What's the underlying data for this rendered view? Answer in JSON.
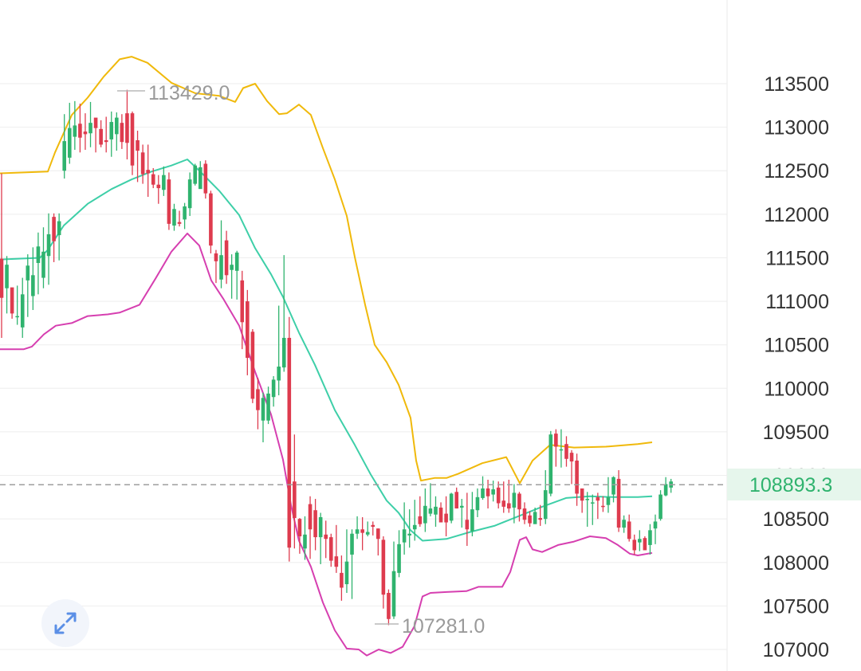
{
  "chart_data": {
    "type": "candlestick",
    "y_range": [
      106900,
      113900
    ],
    "y_ticks": [
      "113500",
      "113000",
      "112500",
      "112000",
      "111500",
      "111000",
      "110500",
      "110000",
      "109500",
      "109000",
      "108500",
      "108000",
      "107500",
      "107000"
    ],
    "current_price": 108893.3,
    "current_price_label": "108893.3",
    "high_label": "113429.0",
    "low_label": "107281.0",
    "colors": {
      "up": "#2fb36e",
      "down": "#de3b4e",
      "upper_band": "#f0b90b",
      "middle_band": "#3ecfa8",
      "lower_band": "#d63fb0",
      "grid": "#eeeeee",
      "price_line": "#9e9e9e",
      "price_tag_bg": "#e6f6ec",
      "price_tag_text": "#2fb36e"
    },
    "candles": [
      [
        111490,
        111040,
        112470,
        110580
      ],
      [
        111150,
        111420,
        111520,
        110860
      ],
      [
        111160,
        110860,
        111150,
        110800
      ],
      [
        110820,
        110830,
        111180,
        110730
      ],
      [
        110700,
        111080,
        111270,
        110580
      ],
      [
        111240,
        111410,
        111540,
        110820
      ],
      [
        111060,
        111300,
        111620,
        110900
      ],
      [
        111440,
        111630,
        111790,
        111080
      ],
      [
        111270,
        111570,
        111850,
        111150
      ],
      [
        111520,
        111770,
        112010,
        111190
      ],
      [
        111970,
        111690,
        112010,
        111450
      ],
      [
        111760,
        111920,
        112010,
        111470
      ],
      [
        112500,
        112840,
        113150,
        112410
      ],
      [
        112650,
        112990,
        113280,
        112580
      ],
      [
        112890,
        113020,
        113300,
        112740
      ],
      [
        113040,
        112880,
        113270,
        112710
      ],
      [
        112950,
        112920,
        113160,
        112740
      ],
      [
        112930,
        113050,
        113290,
        112770
      ],
      [
        113110,
        112990,
        113090,
        112710
      ],
      [
        112980,
        112800,
        113080,
        112770
      ],
      [
        112850,
        112830,
        113120,
        112710
      ],
      [
        112860,
        113060,
        113180,
        112660
      ],
      [
        112920,
        113110,
        113170,
        112730
      ],
      [
        113050,
        112830,
        113150,
        112750
      ],
      [
        113160,
        112820,
        113430,
        112630
      ],
      [
        113160,
        112560,
        113180,
        112450
      ],
      [
        112850,
        112730,
        112960,
        112370
      ],
      [
        112710,
        112460,
        112800,
        112350
      ],
      [
        112510,
        112470,
        112800,
        112200
      ],
      [
        112460,
        112340,
        112530,
        112300
      ],
      [
        112340,
        112300,
        112450,
        112120
      ],
      [
        112280,
        112450,
        112550,
        112210
      ],
      [
        112400,
        111890,
        112480,
        111820
      ],
      [
        111870,
        112060,
        112120,
        111810
      ],
      [
        111910,
        111890,
        112040,
        111860
      ],
      [
        111940,
        112090,
        112130,
        111830
      ],
      [
        112070,
        112400,
        112480,
        111980
      ],
      [
        112350,
        112560,
        112580,
        112330
      ],
      [
        112290,
        112540,
        112610,
        112320
      ],
      [
        112580,
        112240,
        112620,
        112180
      ],
      [
        112240,
        111640,
        112270,
        111550
      ],
      [
        111550,
        111460,
        111590,
        111210
      ],
      [
        111250,
        111530,
        111930,
        111150
      ],
      [
        111700,
        111300,
        111810,
        111200
      ],
      [
        111360,
        111420,
        111540,
        111030
      ],
      [
        111350,
        111560,
        111580,
        111020
      ],
      [
        111240,
        110760,
        111350,
        110450
      ],
      [
        111000,
        110350,
        111130,
        110150
      ],
      [
        110650,
        109880,
        110680,
        109830
      ],
      [
        109990,
        109750,
        110120,
        109530
      ],
      [
        109630,
        109890,
        109950,
        109380
      ],
      [
        109630,
        109940,
        110020,
        109590
      ],
      [
        109900,
        110100,
        110140,
        109790
      ],
      [
        110090,
        110250,
        110950,
        109920
      ],
      [
        110240,
        110580,
        111530,
        110190
      ],
      [
        110580,
        108170,
        110820,
        108010
      ],
      [
        108930,
        108510,
        109470,
        108160
      ],
      [
        108500,
        108300,
        108510,
        108100
      ],
      [
        108160,
        108320,
        108530,
        108030
      ],
      [
        108670,
        108380,
        108760,
        108040
      ],
      [
        108600,
        108290,
        108730,
        108140
      ],
      [
        108290,
        108520,
        108570,
        107980
      ],
      [
        108320,
        108270,
        108480,
        108050
      ],
      [
        108290,
        108020,
        108330,
        107950
      ],
      [
        108070,
        107950,
        108430,
        107880
      ],
      [
        107880,
        107710,
        108080,
        107560
      ],
      [
        107750,
        108010,
        108380,
        107650
      ],
      [
        108090,
        108330,
        108380,
        107580
      ],
      [
        108330,
        108380,
        108530,
        108270
      ],
      [
        108380,
        108340,
        108520,
        108140
      ],
      [
        108320,
        108350,
        108470,
        108300
      ],
      [
        108430,
        108410,
        108470,
        108310
      ],
      [
        108390,
        108270,
        108390,
        108080
      ],
      [
        108260,
        107630,
        108300,
        107470
      ],
      [
        107650,
        107350,
        107690,
        107280
      ],
      [
        107380,
        107900,
        108240,
        107350
      ],
      [
        107880,
        108210,
        108370,
        107830
      ],
      [
        108230,
        108380,
        108690,
        108090
      ],
      [
        108310,
        108330,
        108610,
        108170
      ],
      [
        108380,
        108430,
        108720,
        108250
      ],
      [
        108530,
        108440,
        108760,
        108410
      ],
      [
        108450,
        108650,
        108850,
        108350
      ],
      [
        108560,
        108620,
        108910,
        108530
      ],
      [
        108550,
        108640,
        108760,
        108410
      ],
      [
        108630,
        108460,
        108690,
        108500
      ],
      [
        108560,
        108460,
        108760,
        108300
      ],
      [
        108480,
        108790,
        108800,
        108450
      ],
      [
        108810,
        108620,
        108860,
        108620
      ],
      [
        108630,
        108650,
        108730,
        108400
      ],
      [
        108490,
        108380,
        108800,
        108190
      ],
      [
        108360,
        108610,
        108810,
        108300
      ],
      [
        108600,
        108750,
        108850,
        108520
      ],
      [
        108740,
        108850,
        108990,
        108720
      ],
      [
        108850,
        108760,
        108950,
        108620
      ],
      [
        108780,
        108840,
        108940,
        108700
      ],
      [
        108860,
        108680,
        108930,
        108620
      ],
      [
        108710,
        108640,
        108930,
        108570
      ],
      [
        108680,
        108620,
        108950,
        108570
      ],
      [
        108630,
        108800,
        108900,
        108450
      ],
      [
        108790,
        108610,
        108810,
        108470
      ],
      [
        108620,
        108490,
        108690,
        108440
      ],
      [
        108540,
        108450,
        108590,
        108410
      ],
      [
        108440,
        108580,
        108630,
        108450
      ],
      [
        108510,
        108490,
        108660,
        108420
      ],
      [
        108500,
        108830,
        109060,
        108440
      ],
      [
        108790,
        109470,
        109510,
        108760
      ],
      [
        109480,
        109330,
        109530,
        109100
      ],
      [
        109290,
        109300,
        109530,
        109090
      ],
      [
        109360,
        109190,
        109450,
        109100
      ],
      [
        109260,
        109160,
        109290,
        108900
      ],
      [
        109170,
        108790,
        109250,
        108650
      ],
      [
        108850,
        108710,
        108780,
        108570
      ],
      [
        108720,
        108730,
        108810,
        108410
      ],
      [
        108690,
        108690,
        108780,
        108430
      ],
      [
        108750,
        108710,
        108800,
        108500
      ],
      [
        108650,
        108640,
        108760,
        108580
      ],
      [
        108660,
        108750,
        108980,
        108570
      ],
      [
        108780,
        108980,
        108990,
        108690
      ],
      [
        108960,
        108400,
        109060,
        108350
      ],
      [
        108400,
        108490,
        108540,
        108340
      ],
      [
        108470,
        108270,
        108550,
        108240
      ],
      [
        108260,
        108140,
        108320,
        108090
      ],
      [
        108230,
        108270,
        108370,
        108130
      ],
      [
        108280,
        108140,
        108300,
        108150
      ],
      [
        108200,
        108370,
        108440,
        108090
      ],
      [
        108390,
        108470,
        108550,
        108210
      ],
      [
        108500,
        108780,
        108830,
        108480
      ],
      [
        108770,
        108900,
        108980,
        108760
      ],
      [
        108860,
        108930,
        108960,
        108800
      ]
    ],
    "upper_band": [
      [
        0,
        112470
      ],
      [
        60,
        112490
      ],
      [
        69,
        112710
      ],
      [
        90,
        113140
      ],
      [
        110,
        113340
      ],
      [
        130,
        113580
      ],
      [
        150,
        113780
      ],
      [
        165,
        113810
      ],
      [
        185,
        113740
      ],
      [
        215,
        113510
      ],
      [
        245,
        113390
      ],
      [
        275,
        113360
      ],
      [
        295,
        113290
      ],
      [
        305,
        113450
      ],
      [
        320,
        113500
      ],
      [
        335,
        113300
      ],
      [
        350,
        113150
      ],
      [
        360,
        113160
      ],
      [
        375,
        113260
      ],
      [
        390,
        113140
      ],
      [
        405,
        112760
      ],
      [
        420,
        112400
      ],
      [
        435,
        111980
      ],
      [
        445,
        111510
      ],
      [
        458,
        110960
      ],
      [
        470,
        110500
      ],
      [
        485,
        110300
      ],
      [
        500,
        110040
      ],
      [
        515,
        109660
      ],
      [
        522,
        109170
      ],
      [
        528,
        108940
      ],
      [
        545,
        108970
      ],
      [
        560,
        108970
      ],
      [
        575,
        109020
      ],
      [
        605,
        109140
      ],
      [
        635,
        109210
      ],
      [
        652,
        108910
      ],
      [
        668,
        109170
      ],
      [
        690,
        109350
      ],
      [
        720,
        109320
      ],
      [
        760,
        109330
      ],
      [
        800,
        109360
      ],
      [
        818,
        109380
      ]
    ],
    "middle_band": [
      [
        0,
        111480
      ],
      [
        50,
        111500
      ],
      [
        60,
        111590
      ],
      [
        80,
        111870
      ],
      [
        110,
        112120
      ],
      [
        140,
        112290
      ],
      [
        165,
        112400
      ],
      [
        190,
        112490
      ],
      [
        215,
        112560
      ],
      [
        235,
        112630
      ],
      [
        250,
        112500
      ],
      [
        275,
        112270
      ],
      [
        300,
        111990
      ],
      [
        320,
        111610
      ],
      [
        340,
        111310
      ],
      [
        355,
        111050
      ],
      [
        375,
        110640
      ],
      [
        395,
        110270
      ],
      [
        420,
        109750
      ],
      [
        445,
        109350
      ],
      [
        465,
        109010
      ],
      [
        485,
        108710
      ],
      [
        500,
        108570
      ],
      [
        515,
        108370
      ],
      [
        530,
        108250
      ],
      [
        560,
        108270
      ],
      [
        590,
        108350
      ],
      [
        620,
        108420
      ],
      [
        650,
        108530
      ],
      [
        680,
        108640
      ],
      [
        710,
        108740
      ],
      [
        740,
        108760
      ],
      [
        770,
        108750
      ],
      [
        800,
        108750
      ],
      [
        818,
        108760
      ]
    ],
    "lower_band": [
      [
        0,
        110450
      ],
      [
        30,
        110450
      ],
      [
        40,
        110480
      ],
      [
        55,
        110620
      ],
      [
        70,
        110720
      ],
      [
        90,
        110750
      ],
      [
        110,
        110830
      ],
      [
        135,
        110850
      ],
      [
        150,
        110870
      ],
      [
        175,
        110960
      ],
      [
        195,
        111260
      ],
      [
        215,
        111570
      ],
      [
        235,
        111780
      ],
      [
        250,
        111640
      ],
      [
        265,
        111240
      ],
      [
        280,
        111030
      ],
      [
        300,
        110720
      ],
      [
        320,
        110190
      ],
      [
        340,
        109700
      ],
      [
        355,
        109180
      ],
      [
        365,
        108660
      ],
      [
        375,
        108250
      ],
      [
        390,
        107950
      ],
      [
        405,
        107540
      ],
      [
        420,
        107220
      ],
      [
        435,
        107010
      ],
      [
        450,
        107000
      ],
      [
        460,
        106930
      ],
      [
        475,
        107000
      ],
      [
        490,
        106960
      ],
      [
        505,
        107030
      ],
      [
        520,
        107270
      ],
      [
        530,
        107610
      ],
      [
        540,
        107650
      ],
      [
        560,
        107660
      ],
      [
        585,
        107670
      ],
      [
        600,
        107720
      ],
      [
        630,
        107720
      ],
      [
        640,
        107890
      ],
      [
        652,
        108260
      ],
      [
        660,
        108290
      ],
      [
        668,
        108150
      ],
      [
        680,
        108120
      ],
      [
        700,
        108200
      ],
      [
        720,
        108240
      ],
      [
        740,
        108300
      ],
      [
        760,
        108280
      ],
      [
        775,
        108200
      ],
      [
        790,
        108100
      ],
      [
        800,
        108080
      ],
      [
        818,
        108110
      ]
    ]
  }
}
